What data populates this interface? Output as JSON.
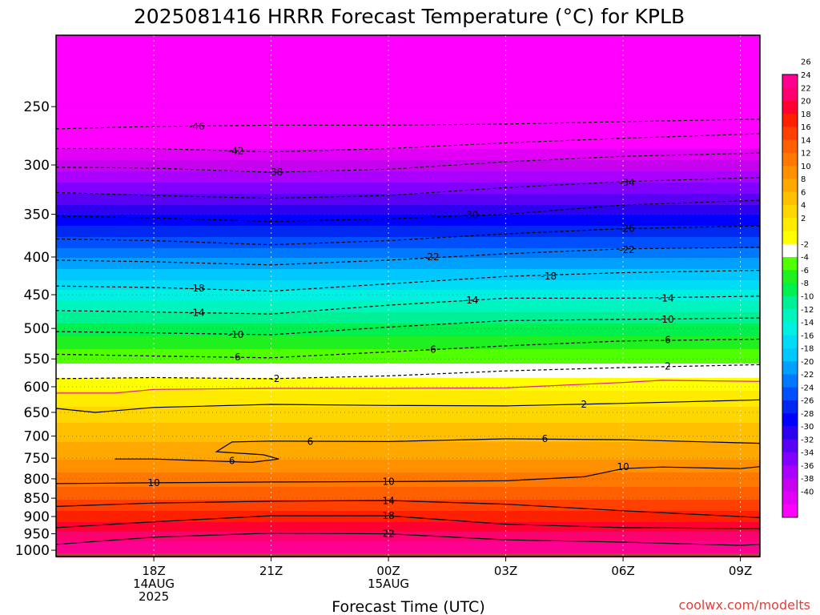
{
  "chart_data": {
    "type": "heatmap",
    "title": "2025081416 HRRR Forecast Temperature (°C) for KPLB",
    "xlabel": "Forecast Time (UTC)",
    "ylabel": "",
    "credit": "coolwx.com/modelts",
    "x_range_hours": [
      -2.5,
      15.5
    ],
    "y_range_hpa": [
      200,
      1020
    ],
    "y_scale": "log",
    "y_reversed": true,
    "x_ticks": [
      {
        "hour": 0,
        "label": "18Z",
        "date": "14AUG",
        "year": "2025"
      },
      {
        "hour": 3,
        "label": "21Z",
        "date": "",
        "year": ""
      },
      {
        "hour": 6,
        "label": "00Z",
        "date": "15AUG",
        "year": ""
      },
      {
        "hour": 9,
        "label": "03Z",
        "date": "",
        "year": ""
      },
      {
        "hour": 12,
        "label": "06Z",
        "date": "",
        "year": ""
      },
      {
        "hour": 15,
        "label": "09Z",
        "date": "",
        "year": ""
      }
    ],
    "y_ticks": [
      250,
      300,
      350,
      400,
      450,
      500,
      550,
      600,
      650,
      700,
      750,
      800,
      850,
      900,
      950,
      1000
    ],
    "colorbar": {
      "min": -41,
      "max": 27,
      "step": 2,
      "labels": [
        26,
        24,
        22,
        20,
        18,
        16,
        14,
        12,
        10,
        8,
        6,
        4,
        2,
        -2,
        -4,
        -6,
        -8,
        -10,
        -12,
        -14,
        -16,
        -18,
        -20,
        -22,
        -24,
        -26,
        -28,
        -30,
        -32,
        -34,
        -36,
        -38,
        -40
      ]
    },
    "profile": [
      {
        "p": 200,
        "t": -57
      },
      {
        "p": 250,
        "t": -48
      },
      {
        "p": 300,
        "t": -38
      },
      {
        "p": 350,
        "t": -29
      },
      {
        "p": 400,
        "t": -21
      },
      {
        "p": 450,
        "t": -14
      },
      {
        "p": 500,
        "t": -8
      },
      {
        "p": 550,
        "t": -3.5
      },
      {
        "p": 600,
        "t": 0.5
      },
      {
        "p": 650,
        "t": 4
      },
      {
        "p": 700,
        "t": 6.5
      },
      {
        "p": 750,
        "t": 9
      },
      {
        "p": 800,
        "t": 12
      },
      {
        "p": 850,
        "t": 15
      },
      {
        "p": 900,
        "t": 18
      },
      {
        "p": 950,
        "t": 21.5
      },
      {
        "p": 1000,
        "t": 25
      }
    ],
    "contours": [
      {
        "value": -46,
        "dashed": true,
        "points": [
          [
            -2.5,
            268
          ],
          [
            0,
            266
          ],
          [
            3,
            265
          ],
          [
            6,
            265
          ],
          [
            9,
            264
          ],
          [
            12,
            262
          ],
          [
            15.5,
            260
          ]
        ]
      },
      {
        "value": -42,
        "dashed": true,
        "points": [
          [
            -2.5,
            285
          ],
          [
            0,
            285
          ],
          [
            3,
            288
          ],
          [
            6,
            285
          ],
          [
            9,
            280
          ],
          [
            12,
            276
          ],
          [
            15.5,
            272
          ]
        ]
      },
      {
        "value": -38,
        "dashed": true,
        "points": [
          [
            -2.5,
            302
          ],
          [
            0,
            303
          ],
          [
            3,
            307
          ],
          [
            6,
            304
          ],
          [
            9,
            297
          ],
          [
            12,
            292
          ],
          [
            15.5,
            289
          ]
        ]
      },
      {
        "value": -34,
        "dashed": true,
        "points": [
          [
            -2.5,
            327
          ],
          [
            0,
            330
          ],
          [
            3,
            333
          ],
          [
            6,
            330
          ],
          [
            9,
            322
          ],
          [
            12,
            316
          ],
          [
            15.5,
            312
          ]
        ]
      },
      {
        "value": -30,
        "dashed": true,
        "points": [
          [
            -2.5,
            352
          ],
          [
            0,
            354
          ],
          [
            3,
            358
          ],
          [
            6,
            355
          ],
          [
            9,
            350
          ],
          [
            12,
            340
          ],
          [
            15.5,
            335
          ]
        ]
      },
      {
        "value": -26,
        "dashed": true,
        "points": [
          [
            -2.5,
            378
          ],
          [
            0,
            380
          ],
          [
            3,
            385
          ],
          [
            6,
            380
          ],
          [
            9,
            372
          ],
          [
            12,
            366
          ],
          [
            15.5,
            363
          ]
        ]
      },
      {
        "value": -22,
        "dashed": true,
        "points": [
          [
            -2.5,
            404
          ],
          [
            0,
            406
          ],
          [
            3,
            410
          ],
          [
            6,
            404
          ],
          [
            9,
            396
          ],
          [
            12,
            390
          ],
          [
            15.5,
            388
          ]
        ]
      },
      {
        "value": -18,
        "dashed": true,
        "points": [
          [
            -2.5,
            438
          ],
          [
            0,
            440
          ],
          [
            3,
            445
          ],
          [
            6,
            435
          ],
          [
            9,
            425
          ],
          [
            12,
            420
          ],
          [
            15.5,
            417
          ]
        ]
      },
      {
        "value": -14,
        "dashed": true,
        "points": [
          [
            -2.5,
            473
          ],
          [
            0,
            475
          ],
          [
            3,
            478
          ],
          [
            6,
            465
          ],
          [
            9,
            455
          ],
          [
            12,
            455
          ],
          [
            15.5,
            452
          ]
        ]
      },
      {
        "value": -10,
        "dashed": true,
        "points": [
          [
            -2.5,
            505
          ],
          [
            0,
            507
          ],
          [
            3,
            510
          ],
          [
            6,
            498
          ],
          [
            9,
            488
          ],
          [
            12,
            486
          ],
          [
            15.5,
            484
          ]
        ]
      },
      {
        "value": -6,
        "dashed": true,
        "points": [
          [
            -2.5,
            542
          ],
          [
            0,
            545
          ],
          [
            3,
            548
          ],
          [
            6,
            538
          ],
          [
            9,
            528
          ],
          [
            12,
            520
          ],
          [
            15.5,
            517
          ]
        ]
      },
      {
        "value": -2,
        "dashed": true,
        "points": [
          [
            -2.5,
            585
          ],
          [
            0,
            583
          ],
          [
            3,
            585
          ],
          [
            6,
            580
          ],
          [
            9,
            571
          ],
          [
            12,
            565
          ],
          [
            15.5,
            560
          ]
        ]
      },
      {
        "value": 0,
        "dashed": false,
        "magenta": true,
        "points": [
          [
            -2.5,
            612
          ],
          [
            -1,
            612
          ],
          [
            0,
            605
          ],
          [
            3,
            603
          ],
          [
            6,
            603
          ],
          [
            9,
            602
          ],
          [
            12,
            592
          ],
          [
            13,
            588
          ],
          [
            15.5,
            590
          ]
        ]
      },
      {
        "value": 2,
        "dashed": false,
        "points": [
          [
            -2.5,
            642
          ],
          [
            -1.5,
            650
          ],
          [
            0,
            640
          ],
          [
            3,
            634
          ],
          [
            6,
            636
          ],
          [
            9,
            637
          ],
          [
            12,
            632
          ],
          [
            15.5,
            625
          ]
        ]
      },
      {
        "value": 6,
        "dashed": false,
        "points": [
          [
            -1,
            752
          ],
          [
            0,
            752
          ],
          [
            2.5,
            760
          ],
          [
            3.2,
            752
          ],
          [
            2.8,
            742
          ],
          [
            1.6,
            735
          ],
          [
            2,
            713
          ],
          [
            3,
            711
          ],
          [
            6,
            712
          ],
          [
            9,
            706
          ],
          [
            12,
            708
          ],
          [
            15.5,
            716
          ]
        ]
      },
      {
        "value": 10,
        "dashed": false,
        "points": [
          [
            -2.5,
            812
          ],
          [
            0,
            810
          ],
          [
            3,
            808
          ],
          [
            6,
            807
          ],
          [
            9,
            805
          ],
          [
            11,
            795
          ],
          [
            12,
            775
          ],
          [
            13,
            771
          ],
          [
            15,
            775
          ],
          [
            15.5,
            770
          ]
        ]
      },
      {
        "value": 14,
        "dashed": false,
        "points": [
          [
            -2.5,
            872
          ],
          [
            0,
            863
          ],
          [
            3,
            858
          ],
          [
            6,
            856
          ],
          [
            9,
            866
          ],
          [
            12,
            884
          ],
          [
            15.5,
            903
          ]
        ]
      },
      {
        "value": 18,
        "dashed": false,
        "points": [
          [
            -2.5,
            932
          ],
          [
            0,
            915
          ],
          [
            3,
            898
          ],
          [
            6,
            898
          ],
          [
            9,
            922
          ],
          [
            12,
            932
          ],
          [
            15.5,
            935
          ]
        ]
      },
      {
        "value": 22,
        "dashed": false,
        "points": [
          [
            -2.5,
            982
          ],
          [
            0,
            960
          ],
          [
            3,
            948
          ],
          [
            6,
            950
          ],
          [
            9,
            968
          ],
          [
            12,
            975
          ],
          [
            15,
            985
          ],
          [
            15.5,
            982
          ]
        ]
      }
    ],
    "contour_labels": [
      {
        "value": -46,
        "hour": 1.1,
        "p": 266
      },
      {
        "value": -42,
        "hour": 2.1,
        "p": 287
      },
      {
        "value": -38,
        "hour": 3.1,
        "p": 307
      },
      {
        "value": -34,
        "hour": 12.1,
        "p": 317
      },
      {
        "value": -30,
        "hour": 8.1,
        "p": 351
      },
      {
        "value": -26,
        "hour": 12.1,
        "p": 366
      },
      {
        "value": -22,
        "hour": 7.1,
        "p": 400
      },
      {
        "value": -22,
        "hour": 12.1,
        "p": 391
      },
      {
        "value": -18,
        "hour": 1.1,
        "p": 441
      },
      {
        "value": -18,
        "hour": 10.1,
        "p": 425
      },
      {
        "value": -14,
        "hour": 1.1,
        "p": 476
      },
      {
        "value": -14,
        "hour": 8.1,
        "p": 458
      },
      {
        "value": -14,
        "hour": 13.1,
        "p": 455
      },
      {
        "value": -10,
        "hour": 2.1,
        "p": 510
      },
      {
        "value": -10,
        "hour": 13.1,
        "p": 486
      },
      {
        "value": -6,
        "hour": 2.1,
        "p": 547
      },
      {
        "value": -6,
        "hour": 7.1,
        "p": 534
      },
      {
        "value": -6,
        "hour": 13.1,
        "p": 518
      },
      {
        "value": -2,
        "hour": 3.1,
        "p": 585
      },
      {
        "value": -2,
        "hour": 13.1,
        "p": 563
      },
      {
        "value": 2,
        "hour": 11.0,
        "p": 634
      },
      {
        "value": 6,
        "hour": 4.0,
        "p": 712
      },
      {
        "value": 6,
        "hour": 2.0,
        "p": 756
      },
      {
        "value": 6,
        "hour": 10.0,
        "p": 706
      },
      {
        "value": 10,
        "hour": 0.0,
        "p": 810
      },
      {
        "value": 10,
        "hour": 6.0,
        "p": 807
      },
      {
        "value": 10,
        "hour": 12.0,
        "p": 771
      },
      {
        "value": 14,
        "hour": 6.0,
        "p": 857
      },
      {
        "value": 18,
        "hour": 6.0,
        "p": 898
      },
      {
        "value": 22,
        "hour": 6.0,
        "p": 950
      }
    ],
    "grid": true,
    "ground_color": "#a0522d"
  },
  "colors": {
    "palette": [
      "#ff00ff",
      "#e100f5",
      "#c800f0",
      "#aa00ff",
      "#8200ff",
      "#5a00f5",
      "#2d00f0",
      "#0000ff",
      "#0028f0",
      "#0050ff",
      "#0078ff",
      "#00a0ff",
      "#00c8ff",
      "#00dcf5",
      "#00f0e1",
      "#00f5be",
      "#00f096",
      "#00f050",
      "#20f020",
      "#50ff00",
      "#ffffff",
      "#ffff00",
      "#ffeb00",
      "#ffd700",
      "#ffc000",
      "#ffa800",
      "#ff9000",
      "#ff7800",
      "#ff6000",
      "#ff4000",
      "#ff2000",
      "#ff0030",
      "#ff0070",
      "#ff0090"
    ],
    "credit": "#e0403a",
    "freezing": "#e01e8c"
  }
}
